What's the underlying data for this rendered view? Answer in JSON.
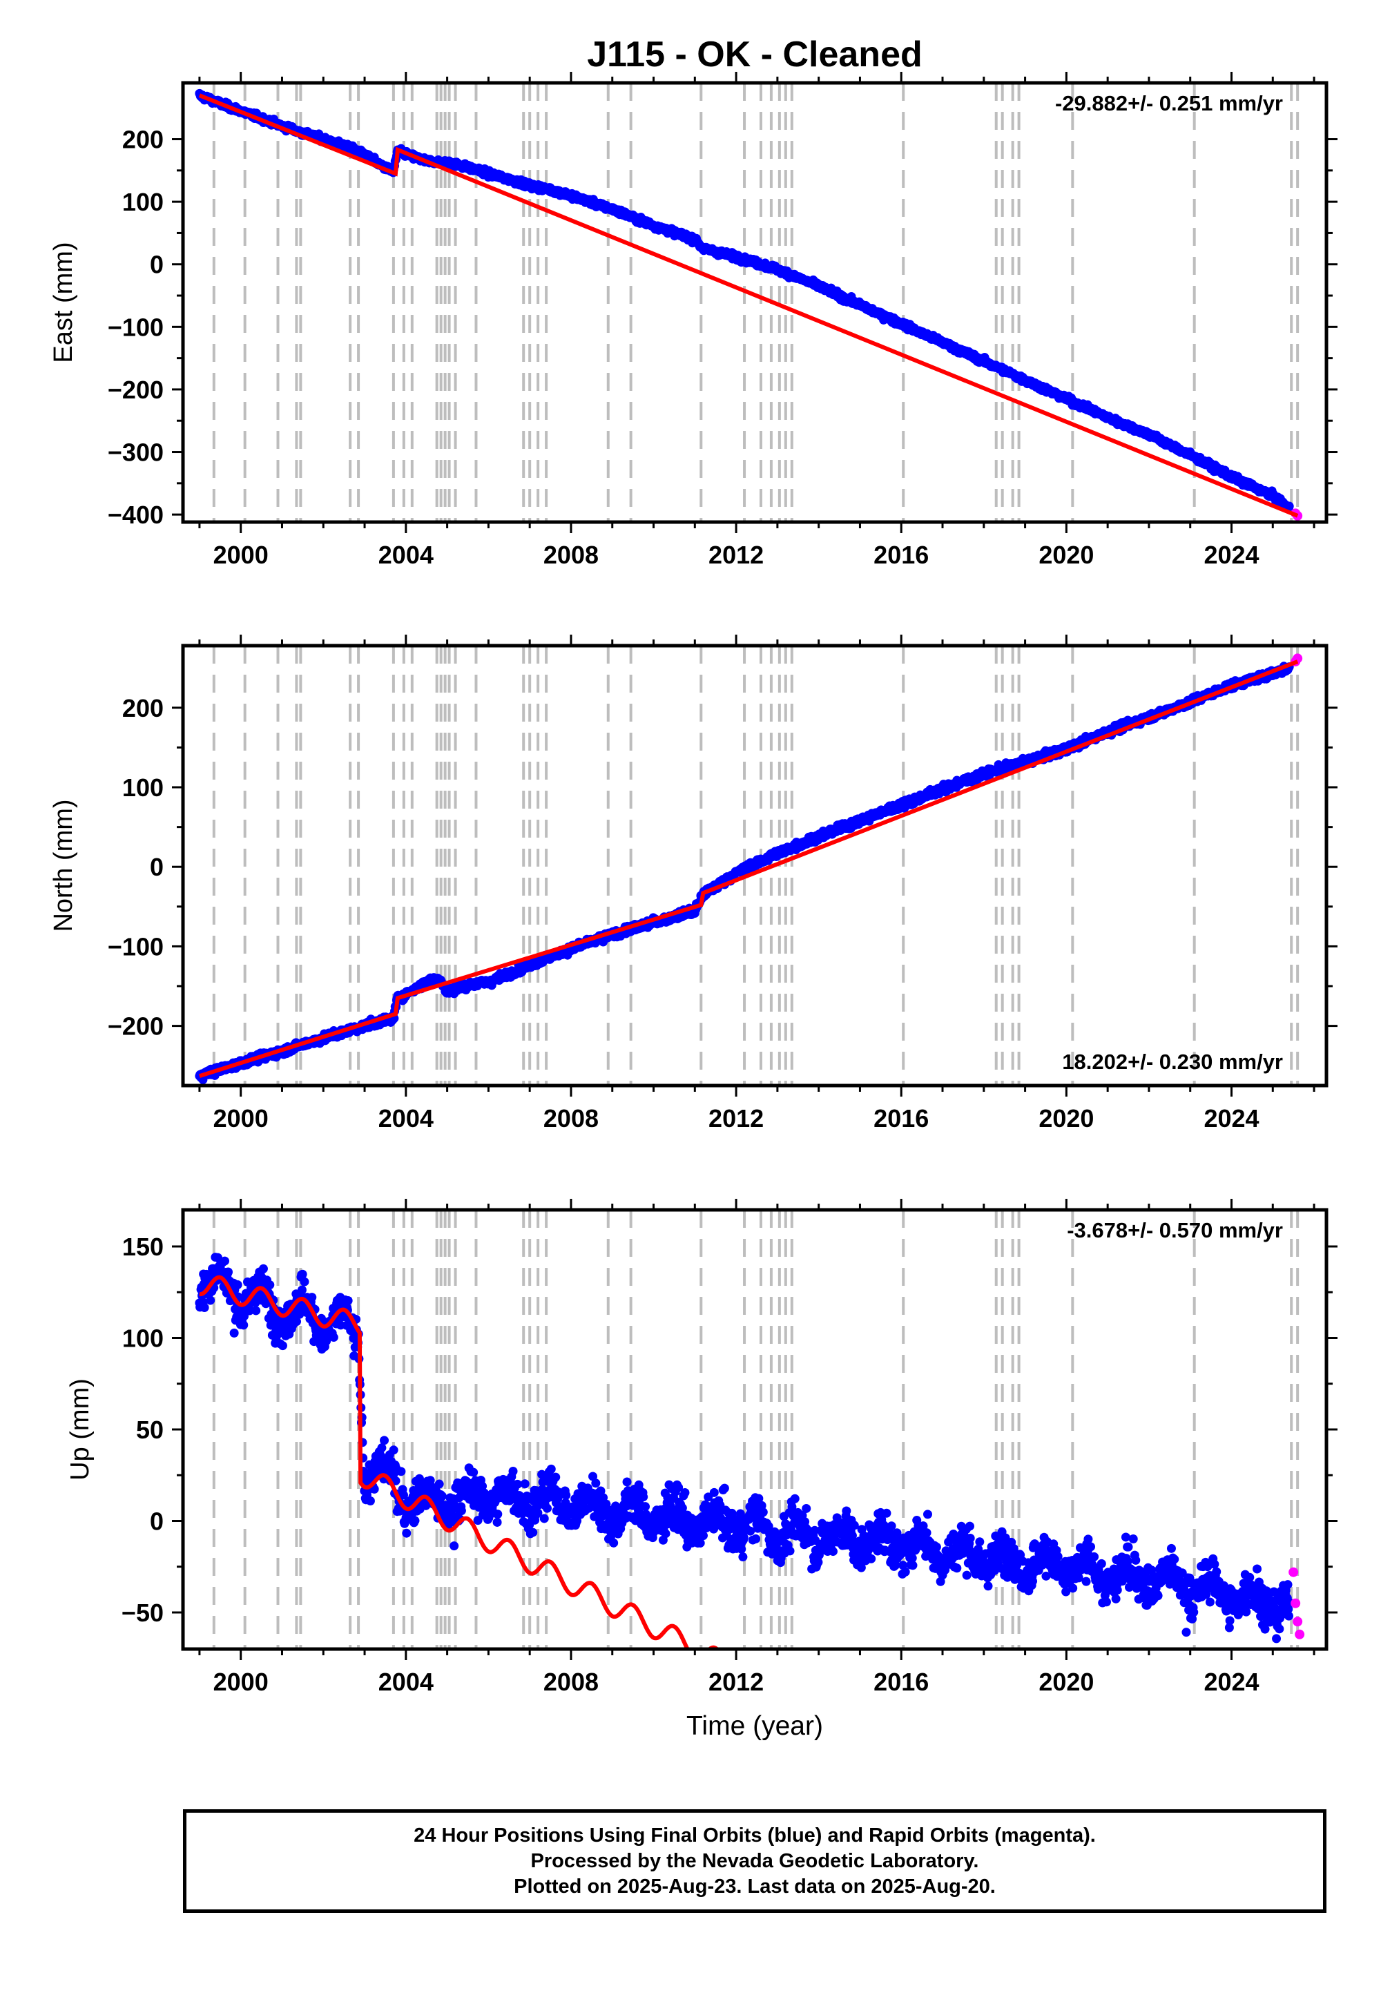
{
  "title": "J115  - OK - Cleaned",
  "colors": {
    "final_orbits": "#0000ff",
    "rapid_orbits": "#ff00ff",
    "model": "#ff0000",
    "events": "#bdbdbd",
    "frame": "#000000"
  },
  "xlabel": "Time (year)",
  "footer": {
    "line1": "24 Hour Positions Using Final Orbits (blue) and Rapid Orbits (magenta).",
    "line2": "Processed by the Nevada Geodetic Laboratory.",
    "line3": "Plotted on 2025-Aug-23. Last data on 2025-Aug-20."
  },
  "chart_data": [
    {
      "type": "scatter",
      "component": "East",
      "ylabel": "East (mm)",
      "rate_annotation": "-29.882+/- 0.251 mm/yr",
      "annotation_position": "top-right",
      "xlim": [
        1998.6,
        2026.3
      ],
      "ylim": [
        -412,
        290
      ],
      "x_ticks": [
        2000,
        2004,
        2008,
        2012,
        2016,
        2020,
        2024
      ],
      "y_ticks": [
        -400,
        -300,
        -200,
        -100,
        0,
        100,
        200
      ],
      "y_tick_labels": [
        "−400",
        "−300",
        "−200",
        "−100",
        "0",
        "100",
        "200"
      ],
      "grid": false,
      "series": [
        {
          "name": "Final Orbits (blue)",
          "x": [
            1999.0,
            1999.5,
            2000.0,
            2000.5,
            2001.0,
            2001.5,
            2002.0,
            2002.5,
            2003.0,
            2003.4,
            2003.7,
            2003.8,
            2004.0,
            2004.5,
            2005.0,
            2005.5,
            2006.0,
            2006.5,
            2007.0,
            2007.5,
            2008.0,
            2009.0,
            2010.0,
            2011.0,
            2011.2,
            2012.0,
            2013.0,
            2014.0,
            2015.0,
            2016.0,
            2017.0,
            2018.0,
            2019.0,
            2020.0,
            2021.0,
            2022.0,
            2023.0,
            2024.0,
            2025.0,
            2025.4
          ],
          "y": [
            270,
            257,
            245,
            233,
            221,
            210,
            200,
            190,
            176,
            158,
            148,
            182,
            176,
            165,
            163,
            155,
            145,
            136,
            126,
            119,
            110,
            88,
            62,
            40,
            25,
            12,
            -8,
            -35,
            -65,
            -95,
            -125,
            -155,
            -185,
            -215,
            -245,
            -272,
            -305,
            -340,
            -370,
            -390
          ]
        },
        {
          "name": "Rapid Orbits (magenta)",
          "x": [
            2025.55,
            2025.6
          ],
          "y": [
            -398,
            -402
          ]
        }
      ],
      "model_x": [
        1999.0,
        2003.75,
        2003.8,
        2025.6
      ],
      "model_y": [
        270,
        145,
        183,
        -402
      ]
    },
    {
      "type": "scatter",
      "component": "North",
      "ylabel": "North (mm)",
      "rate_annotation": "18.202+/- 0.230 mm/yr",
      "annotation_position": "bottom-right",
      "xlim": [
        1998.6,
        2026.3
      ],
      "ylim": [
        -275,
        278
      ],
      "x_ticks": [
        2000,
        2004,
        2008,
        2012,
        2016,
        2020,
        2024
      ],
      "y_ticks": [
        -200,
        -100,
        0,
        100,
        200
      ],
      "y_tick_labels": [
        "−200",
        "−100",
        "0",
        "100",
        "200"
      ],
      "grid": false,
      "series": [
        {
          "name": "Final Orbits (blue)",
          "x": [
            1999.0,
            2000.0,
            2001.0,
            2002.0,
            2003.0,
            2003.7,
            2003.8,
            2004.0,
            2004.5,
            2004.8,
            2005.0,
            2005.5,
            2006.0,
            2007.0,
            2008.0,
            2009.0,
            2010.0,
            2011.0,
            2011.2,
            2012.0,
            2013.0,
            2014.0,
            2015.0,
            2016.0,
            2017.0,
            2018.0,
            2019.0,
            2020.0,
            2021.0,
            2022.0,
            2023.0,
            2024.0,
            2025.0,
            2025.4
          ],
          "y": [
            -263,
            -247,
            -232,
            -215,
            -200,
            -190,
            -165,
            -160,
            -145,
            -140,
            -158,
            -148,
            -145,
            -123,
            -103,
            -85,
            -70,
            -55,
            -35,
            -8,
            17,
            38,
            58,
            78,
            98,
            117,
            132,
            148,
            170,
            188,
            207,
            228,
            243,
            250
          ]
        },
        {
          "name": "Rapid Orbits (magenta)",
          "x": [
            2025.55,
            2025.6
          ],
          "y": [
            258,
            262
          ]
        }
      ],
      "model_x": [
        1999.0,
        2003.75,
        2003.8,
        2011.15,
        2011.2,
        2025.6
      ],
      "model_y": [
        -263,
        -185,
        -165,
        -48,
        -33,
        258
      ]
    },
    {
      "type": "scatter",
      "component": "Up",
      "ylabel": "Up (mm)",
      "rate_annotation": "-3.678+/- 0.570 mm/yr",
      "annotation_position": "top-right",
      "xlim": [
        1998.6,
        2026.3
      ],
      "ylim": [
        -70,
        170
      ],
      "x_ticks": [
        2000,
        2004,
        2008,
        2012,
        2016,
        2020,
        2024
      ],
      "y_ticks": [
        -50,
        0,
        50,
        100,
        150
      ],
      "y_tick_labels": [
        "−50",
        "0",
        "50",
        "100",
        "150"
      ],
      "grid": false,
      "series": [
        {
          "name": "Final Orbits (blue)",
          "x": [
            1999.0,
            1999.5,
            2000.0,
            2000.5,
            2001.0,
            2001.5,
            2002.0,
            2002.5,
            2002.85,
            2003.0,
            2003.5,
            2004.0,
            2005.0,
            2006.0,
            2007.0,
            2008.0,
            2009.0,
            2010.0,
            2011.0,
            2012.0,
            2013.0,
            2014.0,
            2015.0,
            2016.0,
            2017.0,
            2018.0,
            2019.0,
            2020.0,
            2021.0,
            2022.0,
            2023.0,
            2024.0,
            2025.0,
            2025.4
          ],
          "y": [
            130,
            132,
            120,
            122,
            112,
            118,
            106,
            110,
            98,
            25,
            28,
            12,
            10,
            14,
            12,
            10,
            6,
            3,
            0,
            -2,
            -6,
            -8,
            -10,
            -13,
            -16,
            -20,
            -22,
            -25,
            -30,
            -30,
            -35,
            -40,
            -45,
            -48
          ]
        },
        {
          "name": "Rapid Orbits (magenta)",
          "x": [
            2025.5,
            2025.55,
            2025.6,
            2025.65
          ],
          "y": [
            -28,
            -45,
            -55,
            -62
          ]
        }
      ],
      "model_step": {
        "before_year": 2002.88,
        "before_mm": 130,
        "after_mm": 26
      },
      "model_rate_mm_per_yr": -3.678,
      "seasonal_amplitude_mm": 6
    }
  ],
  "event_years": [
    1999.35,
    2000.1,
    2000.9,
    2001.35,
    2001.45,
    2002.65,
    2002.85,
    2003.7,
    2003.95,
    2004.15,
    2004.75,
    2004.85,
    2004.95,
    2005.05,
    2005.2,
    2005.7,
    2006.85,
    2007.0,
    2007.2,
    2007.4,
    2008.9,
    2009.45,
    2011.15,
    2012.2,
    2012.6,
    2012.85,
    2013.05,
    2013.2,
    2013.35,
    2016.05,
    2018.3,
    2018.45,
    2018.7,
    2018.85,
    2020.15,
    2023.1,
    2025.45,
    2025.6
  ]
}
